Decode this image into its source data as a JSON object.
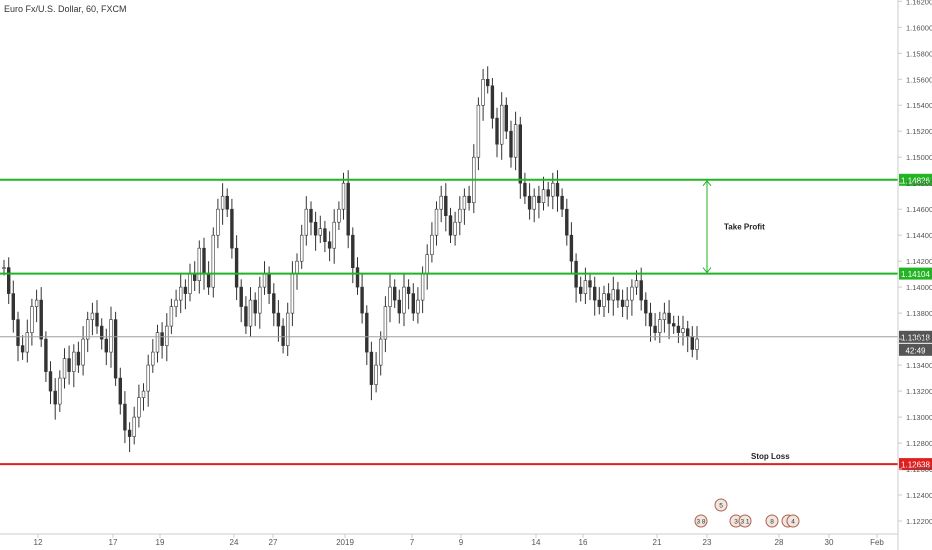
{
  "title": "Euro Fx/U.S. Dollar, 60, FXCM",
  "chart_data": {
    "type": "candlestick",
    "ylim": [
      1.121,
      1.1621
    ],
    "price_ticks": [
      "1.16200",
      "1.16000",
      "1.15800",
      "1.15600",
      "1.15400",
      "1.15200",
      "1.15000",
      "1.14800",
      "1.14600",
      "1.14400",
      "1.14200",
      "1.14000",
      "1.13800",
      "1.13600",
      "1.13400",
      "1.13200",
      "1.13000",
      "1.12800",
      "1.12600",
      "1.12400",
      "1.12200"
    ],
    "time_ticks": [
      "12",
      "17",
      "19",
      "24",
      "27",
      "2019",
      "7",
      "9",
      "14",
      "16",
      "21",
      "23",
      "28",
      "30",
      "Feb"
    ],
    "series": [
      {
        "values": [
          1.1415,
          1.1395,
          1.1375,
          1.1355,
          1.135,
          1.1365,
          1.1385,
          1.139,
          1.136,
          1.1335,
          1.132,
          1.131,
          1.133,
          1.1345,
          1.1335,
          1.135,
          1.134,
          1.136,
          1.1375,
          1.138,
          1.137,
          1.136,
          1.135,
          1.1375,
          1.133,
          1.131,
          1.129,
          1.1285,
          1.13,
          1.1315,
          1.132,
          1.134,
          1.135,
          1.1365,
          1.1355,
          1.137,
          1.1385,
          1.139,
          1.14,
          1.1395,
          1.141,
          1.1405,
          1.143,
          1.141,
          1.14,
          1.144,
          1.146,
          1.147,
          1.146,
          1.143,
          1.14,
          1.1385,
          1.137,
          1.139,
          1.138,
          1.14,
          1.141,
          1.1395,
          1.138,
          1.137,
          1.1355,
          1.138,
          1.141,
          1.142,
          1.144,
          1.146,
          1.145,
          1.144,
          1.1445,
          1.1435,
          1.143,
          1.145,
          1.146,
          1.148,
          1.144,
          1.1415,
          1.14,
          1.138,
          1.135,
          1.1325,
          1.134,
          1.136,
          1.1385,
          1.14,
          1.139,
          1.138,
          1.14,
          1.1395,
          1.138,
          1.139,
          1.141,
          1.1425,
          1.144,
          1.146,
          1.147,
          1.1455,
          1.144,
          1.145,
          1.146,
          1.147,
          1.1465,
          1.15,
          1.154,
          1.156,
          1.1555,
          1.153,
          1.151,
          1.154,
          1.152,
          1.15,
          1.1525,
          1.148,
          1.147,
          1.146,
          1.147,
          1.1465,
          1.1475,
          1.147,
          1.148,
          1.147,
          1.146,
          1.144,
          1.142,
          1.14,
          1.1395,
          1.1405,
          1.14,
          1.139,
          1.1385,
          1.1395,
          1.139,
          1.1398,
          1.139,
          1.1385,
          1.139,
          1.14,
          1.1405,
          1.139,
          1.138,
          1.137,
          1.1365,
          1.1375,
          1.138,
          1.1372,
          1.137,
          1.1365,
          1.1368,
          1.1362,
          1.1352,
          1.136
        ]
      }
    ],
    "horizontal_lines": [
      {
        "value": 1.14826,
        "label": "1.14826",
        "color": "#22b422"
      },
      {
        "value": 1.14104,
        "label": "1.14104",
        "color": "#22b422"
      },
      {
        "value": 1.13618,
        "label": "1.13618",
        "color": "#9e9e9e"
      },
      {
        "value": 1.12638,
        "label": "1.12638",
        "color": "#e02020"
      }
    ],
    "countdown": "42:49",
    "annotations": {
      "take_profit": "Take Profit",
      "stop_loss": "Stop Loss"
    },
    "event_markers": [
      "3 8",
      "5",
      "3",
      "3 1",
      "8",
      "3",
      "4"
    ],
    "colors": {
      "candle": "#333333",
      "axis_text": "#555555",
      "grid_border": "#cccccc"
    }
  }
}
